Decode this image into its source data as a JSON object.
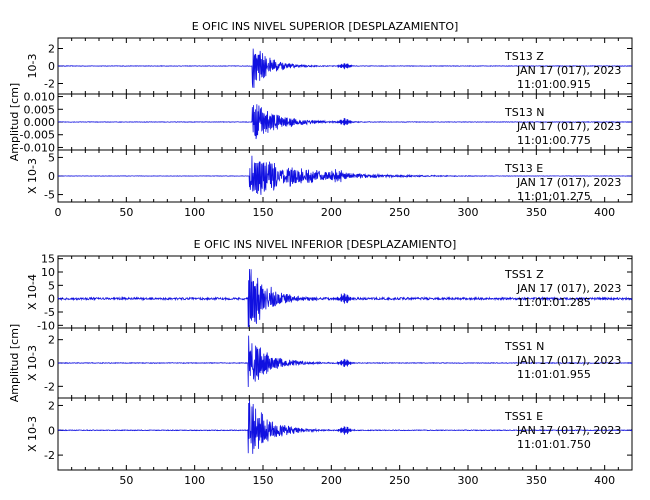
{
  "chart_data": [
    {
      "type": "line",
      "title": "E OFIC INS NIVEL SUPERIOR [DESPLAZAMIENTO]",
      "ylabel": "Amplitud [cm]",
      "xlim": [
        0,
        420
      ],
      "x_ticks": [
        "0",
        "50",
        "100",
        "150",
        "200",
        "250",
        "300",
        "350",
        "400"
      ],
      "traces": [
        {
          "station": "TS13",
          "component": "Z",
          "date": "JAN 17 (017), 2023",
          "time": "11:01:00.915",
          "scale": "10-3",
          "ylim": [
            -3.2,
            3.2
          ],
          "y_ticks": [
            "2",
            "0",
            "-2"
          ],
          "noise": 0.03,
          "peak": 3.1,
          "onset": 142,
          "decay": 12,
          "burst2": [
            210,
            0.35
          ]
        },
        {
          "station": "TS13",
          "component": "N",
          "date": "JAN 17 (017), 2023",
          "time": "11:01:00.775",
          "scale": "",
          "ylim": [
            -0.011,
            0.011
          ],
          "y_ticks": [
            "0.010",
            "0.005",
            "0.000",
            "-0.005",
            "-0.010"
          ],
          "noise": 0.0001,
          "peak": 0.009,
          "onset": 142,
          "decay": 18,
          "burst2": [
            210,
            0.0015
          ]
        },
        {
          "station": "TS13",
          "component": "E",
          "date": "JAN 17 (017), 2023",
          "time": "11:01:01.275",
          "scale": "X 10-3",
          "ylim": [
            -7,
            7
          ],
          "y_ticks": [
            "5",
            "0",
            "-5"
          ],
          "noise": 0.05,
          "peak": 6.8,
          "onset": 140,
          "decay": 35,
          "burst2": [
            205,
            1.3
          ]
        }
      ]
    },
    {
      "type": "line",
      "title": "E OFIC INS NIVEL INFERIOR [DESPLAZAMIENTO]",
      "ylabel": "Amplitud [cm]",
      "xlim": [
        0,
        420
      ],
      "x_ticks": [
        "50",
        "100",
        "150",
        "200",
        "250",
        "300",
        "350",
        "400"
      ],
      "traces": [
        {
          "station": "TSS1",
          "component": "Z",
          "date": "JAN 17 (017), 2023",
          "time": "11:01:01.285",
          "scale": "X 10-4",
          "ylim": [
            -11,
            16
          ],
          "y_ticks": [
            "15",
            "10",
            "5",
            "0",
            "-5",
            "-10"
          ],
          "noise": 0.4,
          "peak": 15,
          "onset": 139,
          "decay": 14,
          "burst2": [
            210,
            2.2
          ]
        },
        {
          "station": "TSS1",
          "component": "N",
          "date": "JAN 17 (017), 2023",
          "time": "11:01:01.955",
          "scale": "X 10-3",
          "ylim": [
            -3,
            3
          ],
          "y_ticks": [
            "2",
            "0",
            "-2"
          ],
          "noise": 0.03,
          "peak": 2.6,
          "onset": 139,
          "decay": 14,
          "burst2": [
            210,
            0.35
          ]
        },
        {
          "station": "TSS1",
          "component": "E",
          "date": "JAN 17 (017), 2023",
          "time": "11:01:01.750",
          "scale": "X 10-3",
          "ylim": [
            -3.2,
            2.6
          ],
          "y_ticks": [
            "2",
            "0",
            "-2"
          ],
          "noise": 0.03,
          "peak": 3.0,
          "onset": 139,
          "decay": 14,
          "burst2": [
            210,
            0.35
          ]
        }
      ]
    }
  ]
}
